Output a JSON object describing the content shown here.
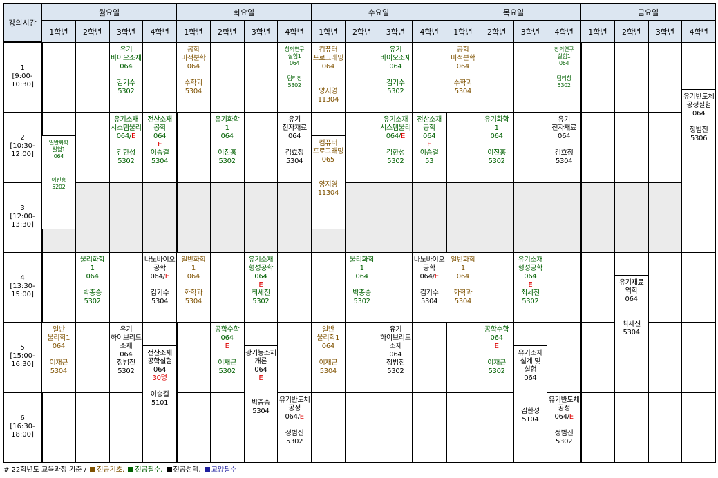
{
  "header": {
    "corner": "강의시간",
    "days": [
      "월요일",
      "화요일",
      "수요일",
      "목요일",
      "금요일"
    ],
    "grades": [
      "1학년",
      "2학년",
      "3학년",
      "4학년"
    ]
  },
  "periods": [
    {
      "num": "1",
      "range": "[9:00-",
      "end": "10:30]"
    },
    {
      "num": "2",
      "range": "[10:30-",
      "end": "12:00]"
    },
    {
      "num": "3",
      "range": "[12:00-",
      "end": "13:30]"
    },
    {
      "num": "4",
      "range": "[13:30-",
      "end": "15:00]"
    },
    {
      "num": "5",
      "range": "[15:00-",
      "end": "16:30]"
    },
    {
      "num": "6",
      "range": "[16:30-",
      "end": "18:00]"
    }
  ],
  "courses": [
    {
      "day": 0,
      "grade": 2,
      "start": 0,
      "end": 1,
      "color": "g",
      "lines": [
        "유기",
        "바이오소재",
        "064",
        "",
        "김기수",
        "5302"
      ]
    },
    {
      "day": 0,
      "grade": 0,
      "start": 1.33,
      "end": 2.67,
      "color": "g",
      "size": "sm",
      "lines": [
        "일반화학",
        "실험1",
        "064",
        "",
        "",
        "이진홍",
        "5202"
      ]
    },
    {
      "day": 0,
      "grade": 2,
      "start": 1,
      "end": 2,
      "color": "g",
      "lines": [
        "유기소재",
        "시스템물리",
        "064/E",
        "",
        "김한성",
        "5302"
      ]
    },
    {
      "day": 0,
      "grade": 3,
      "start": 1,
      "end": 2,
      "color": "g",
      "lines": [
        "전산소재",
        "공학",
        "064",
        "E",
        "이승걸",
        "5304"
      ]
    },
    {
      "day": 0,
      "grade": 1,
      "start": 3,
      "end": 4,
      "color": "g",
      "lines": [
        "물리화학",
        "1",
        "064",
        "",
        "박종승",
        "5302"
      ]
    },
    {
      "day": 0,
      "grade": 3,
      "start": 3,
      "end": 4,
      "color": "k",
      "lines": [
        "나노바이오",
        "공학",
        "064/E",
        "",
        "김기수",
        "5304"
      ]
    },
    {
      "day": 0,
      "grade": 0,
      "start": 4,
      "end": 5,
      "color": "b",
      "lines": [
        "일반",
        "물리학1",
        "064",
        "",
        "이재근",
        "5304"
      ]
    },
    {
      "day": 0,
      "grade": 2,
      "start": 4,
      "end": 5,
      "color": "k",
      "lines": [
        "유기",
        "하이브리드",
        "소재",
        "064",
        "정범진",
        "5302"
      ]
    },
    {
      "day": 0,
      "grade": 3,
      "start": 4.33,
      "end": 6,
      "color": "k",
      "lines": [
        "전산소재",
        "공학실험",
        "064",
        "30명",
        "",
        "이승걸",
        "5101"
      ]
    },
    {
      "day": 1,
      "grade": 0,
      "start": 0,
      "end": 1,
      "color": "b",
      "lines": [
        "공학",
        "미적분학",
        "064",
        "",
        "수학과",
        "5304"
      ]
    },
    {
      "day": 1,
      "grade": 3,
      "start": 0,
      "end": 1,
      "color": "g",
      "size": "sm",
      "lines": [
        "창의연구",
        "실험1",
        "064",
        "",
        "팀티칭",
        "5302"
      ]
    },
    {
      "day": 1,
      "grade": 1,
      "start": 1,
      "end": 2,
      "color": "g",
      "lines": [
        "유기화학",
        "1",
        "064",
        "",
        "이진홍",
        "5302"
      ]
    },
    {
      "day": 1,
      "grade": 3,
      "start": 1,
      "end": 2,
      "color": "k",
      "lines": [
        "유기",
        "전자재료",
        "064",
        "",
        "김효정",
        "5304"
      ]
    },
    {
      "day": 1,
      "grade": 0,
      "start": 3,
      "end": 4,
      "color": "b",
      "lines": [
        "일반화학",
        "1",
        "064",
        "",
        "화학과",
        "5304"
      ]
    },
    {
      "day": 1,
      "grade": 2,
      "start": 3,
      "end": 4,
      "color": "g",
      "lines": [
        "유기소재",
        "형성공학",
        "064",
        "E",
        "최세진",
        "5302"
      ]
    },
    {
      "day": 1,
      "grade": 1,
      "start": 4,
      "end": 5,
      "color": "g",
      "lines": [
        "공학수학",
        "064",
        "E",
        "",
        "이재근",
        "5302"
      ]
    },
    {
      "day": 1,
      "grade": 2,
      "start": 4.33,
      "end": 5.67,
      "color": "k",
      "lines": [
        "광기능소재",
        "개론",
        "064",
        "E",
        "",
        "",
        "박종승",
        "5304"
      ]
    },
    {
      "day": 1,
      "grade": 3,
      "start": 5,
      "end": 6,
      "color": "k",
      "lines": [
        "유기반도체",
        "공정",
        "064/E",
        "",
        "정범진",
        "5302"
      ]
    },
    {
      "day": 2,
      "grade": 0,
      "start": 0,
      "end": 1,
      "color": "b",
      "lines": [
        "컴퓨터",
        "프로그래밍",
        "064",
        "",
        "",
        "양지영",
        "11304"
      ]
    },
    {
      "day": 2,
      "grade": 2,
      "start": 0,
      "end": 1,
      "color": "g",
      "lines": [
        "유기",
        "바이오소재",
        "064",
        "",
        "김기수",
        "5302"
      ]
    },
    {
      "day": 2,
      "grade": 0,
      "start": 1.33,
      "end": 2.67,
      "color": "b",
      "lines": [
        "컴퓨터",
        "프로그래밍",
        "065",
        "",
        "",
        "양지영",
        "11304"
      ]
    },
    {
      "day": 2,
      "grade": 2,
      "start": 1,
      "end": 2,
      "color": "g",
      "lines": [
        "유기소재",
        "시스템물리",
        "064/E",
        "",
        "김한성",
        "5302"
      ]
    },
    {
      "day": 2,
      "grade": 3,
      "start": 1,
      "end": 2,
      "color": "g",
      "lines": [
        "전산소재",
        "공학",
        "064",
        "E",
        "이승걸",
        "53"
      ]
    },
    {
      "day": 2,
      "grade": 1,
      "start": 3,
      "end": 4,
      "color": "g",
      "lines": [
        "물리화학",
        "1",
        "064",
        "",
        "박종승",
        "5302"
      ]
    },
    {
      "day": 2,
      "grade": 3,
      "start": 3,
      "end": 4,
      "color": "k",
      "lines": [
        "나노바이오",
        "공학",
        "064/E",
        "",
        "김기수",
        "5304"
      ]
    },
    {
      "day": 2,
      "grade": 0,
      "start": 4,
      "end": 5,
      "color": "b",
      "lines": [
        "일반",
        "물리학1",
        "064",
        "",
        "이재근",
        "5304"
      ]
    },
    {
      "day": 2,
      "grade": 2,
      "start": 4,
      "end": 5,
      "color": "k",
      "lines": [
        "유기",
        "하이브리드",
        "소재",
        "064",
        "정범진",
        "5302"
      ]
    },
    {
      "day": 3,
      "grade": 0,
      "start": 0,
      "end": 1,
      "color": "b",
      "lines": [
        "공학",
        "미적분학",
        "064",
        "",
        "수학과",
        "5304"
      ]
    },
    {
      "day": 3,
      "grade": 3,
      "start": 0,
      "end": 1,
      "color": "g",
      "size": "sm",
      "lines": [
        "창의연구",
        "실험1",
        "064",
        "",
        "팀티칭",
        "5302"
      ]
    },
    {
      "day": 3,
      "grade": 1,
      "start": 1,
      "end": 2,
      "color": "g",
      "lines": [
        "유기화학",
        "1",
        "064",
        "",
        "이진홍",
        "5302"
      ]
    },
    {
      "day": 3,
      "grade": 3,
      "start": 1,
      "end": 2,
      "color": "k",
      "lines": [
        "유기",
        "전자재료",
        "064",
        "",
        "김효정",
        "5304"
      ]
    },
    {
      "day": 3,
      "grade": 0,
      "start": 3,
      "end": 4,
      "color": "b",
      "lines": [
        "일반화학",
        "1",
        "064",
        "",
        "화학과",
        "5304"
      ]
    },
    {
      "day": 3,
      "grade": 2,
      "start": 3,
      "end": 4,
      "color": "g",
      "lines": [
        "유기소재",
        "형성공학",
        "064",
        "E",
        "최세진",
        "5302"
      ]
    },
    {
      "day": 3,
      "grade": 1,
      "start": 4,
      "end": 5,
      "color": "g",
      "lines": [
        "공학수학",
        "064",
        "E",
        "",
        "이재근",
        "5302"
      ]
    },
    {
      "day": 3,
      "grade": 2,
      "start": 4.33,
      "end": 6,
      "color": "k",
      "lines": [
        "유기소재",
        "설계 및",
        "실험",
        "064",
        "",
        "",
        "",
        "김한성",
        "5104"
      ]
    },
    {
      "day": 3,
      "grade": 3,
      "start": 5,
      "end": 6,
      "color": "k",
      "lines": [
        "유기반도체",
        "공정",
        "064/E",
        "",
        "정범진",
        "5302"
      ]
    },
    {
      "day": 4,
      "grade": 3,
      "start": 0.67,
      "end": 3,
      "color": "k",
      "lines": [
        "유기반도체",
        "공정실험",
        "064",
        "",
        "정범진",
        "5306"
      ]
    },
    {
      "day": 4,
      "grade": 1,
      "start": 3.33,
      "end": 5,
      "color": "k",
      "lines": [
        "유기재료",
        "역학",
        "064",
        "",
        "",
        "최세진",
        "5304"
      ]
    }
  ],
  "legend": {
    "prefix": "# 22학년도 교육과정 기준 /",
    "items": [
      {
        "label": "전공기초,",
        "color": "#7f5200"
      },
      {
        "label": "전공필수,",
        "color": "#006000"
      },
      {
        "label": "전공선택,",
        "color": "#000000"
      },
      {
        "label": "교양필수",
        "color": "#1f1f9f"
      }
    ]
  },
  "colors": {
    "header_bg": "#dce6f1",
    "lunch_bg": "#ebebeb",
    "required_mark": "#d00000"
  }
}
